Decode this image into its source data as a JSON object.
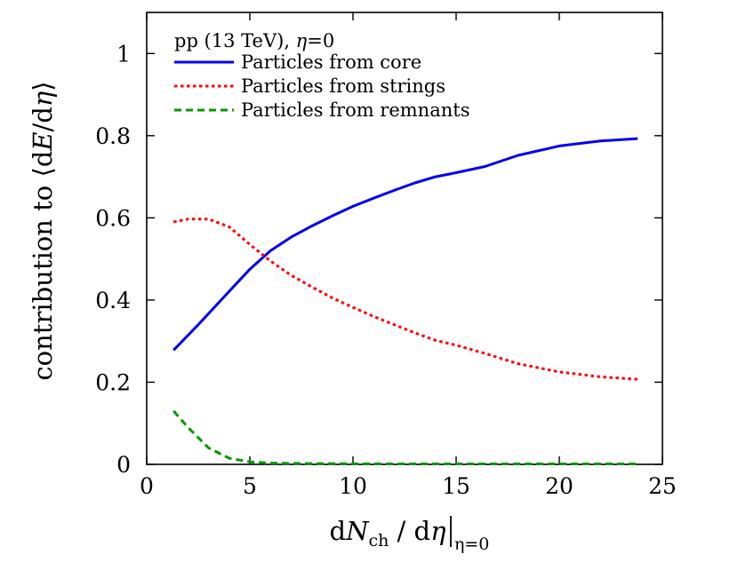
{
  "chart_data": {
    "type": "line",
    "annotation": {
      "prefix": "pp (13 TeV), ",
      "symbol": "η",
      "suffix": "=0"
    },
    "xlabel": {
      "d": "d",
      "N": "N",
      "sub": "ch",
      "mid": " / d",
      "eta": "η",
      "bar_sub": "η=0"
    },
    "ylabel": {
      "prefix": "contribution to ",
      "lang": "⟨",
      "d1": "d",
      "E": "E",
      "slash": "/d",
      "eta": "η",
      "rang": "⟩"
    },
    "xlim": [
      0,
      25
    ],
    "ylim": [
      0,
      1.1
    ],
    "xticks": [
      0,
      5,
      10,
      15,
      20,
      25
    ],
    "xtick_labels": [
      "0",
      "5",
      "10",
      "15",
      "20",
      "25"
    ],
    "yticks": [
      0,
      0.2,
      0.4,
      0.6,
      0.8,
      1
    ],
    "ytick_labels": [
      "0",
      "0.2",
      "0.4",
      "0.6",
      "0.8",
      "1"
    ],
    "legend_position": "top-left",
    "series": [
      {
        "name": "Particles from core",
        "color": "#0000ee",
        "style": "solid",
        "x": [
          1.3,
          2.5,
          3.7,
          5.0,
          6.0,
          7.0,
          8.0,
          9.0,
          10.0,
          11.0,
          12.0,
          13.0,
          14.0,
          15.0,
          16.4,
          18.0,
          20.0,
          22.0,
          23.8
        ],
        "y": [
          0.278,
          0.34,
          0.405,
          0.475,
          0.52,
          0.553,
          0.58,
          0.605,
          0.628,
          0.648,
          0.667,
          0.685,
          0.7,
          0.71,
          0.725,
          0.752,
          0.775,
          0.787,
          0.793
        ]
      },
      {
        "name": "Particles from strings",
        "color": "#ff0000",
        "style": "dotted",
        "x": [
          1.3,
          2.0,
          3.0,
          4.0,
          5.0,
          6.0,
          7.0,
          8.0,
          9.0,
          10.0,
          11.0,
          12.0,
          13.0,
          14.0,
          15.0,
          16.4,
          18.0,
          20.0,
          22.0,
          23.8
        ],
        "y": [
          0.59,
          0.597,
          0.597,
          0.578,
          0.535,
          0.495,
          0.46,
          0.432,
          0.405,
          0.382,
          0.36,
          0.34,
          0.32,
          0.302,
          0.29,
          0.27,
          0.245,
          0.225,
          0.213,
          0.207
        ]
      },
      {
        "name": "Particles from remnants",
        "color": "#009900",
        "style": "dashed",
        "x": [
          1.3,
          2.0,
          3.0,
          4.0,
          5.0,
          6.0,
          8.0,
          12.0,
          16.0,
          20.0,
          23.8
        ],
        "y": [
          0.13,
          0.09,
          0.04,
          0.015,
          0.006,
          0.003,
          0.002,
          0.001,
          0.001,
          0.001,
          0.001
        ]
      }
    ]
  }
}
